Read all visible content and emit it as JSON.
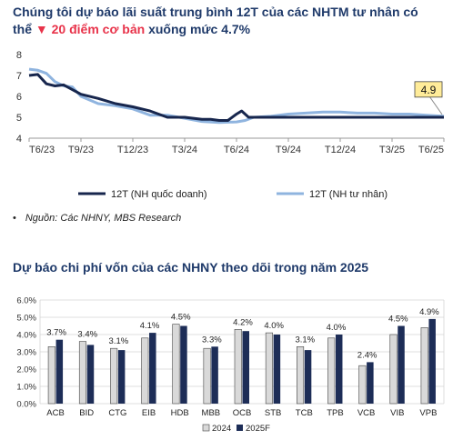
{
  "header": {
    "title_part1": "Chúng tôi dự báo lãi suất trung bình 12T của các NHTM tư nhân có thể",
    "title_highlight": "▼ 20 điểm cơ bản",
    "title_part2": "xuống mức 4.7%"
  },
  "source_note": "Nguồn: Các NHNY, MBS Research",
  "colors": {
    "state": "#17264d",
    "private": "#8fb4df",
    "bar2024": "#d9d9d9",
    "bar2025": "#1d2d57",
    "highlight": "#e8334a",
    "callout": "#ffec99"
  },
  "chart_data": [
    {
      "type": "line",
      "title": "",
      "xlabel": "",
      "ylabel": "",
      "x_ticks": [
        "T6/23",
        "T9/23",
        "T12/23",
        "T3/24",
        "T6/24",
        "T9/24",
        "T12/24",
        "T3/25",
        "T6/25"
      ],
      "x_range": [
        0,
        24
      ],
      "ylim": [
        4,
        8
      ],
      "y_ticks": [
        4,
        5,
        6,
        7,
        8
      ],
      "legend_position": "bottom",
      "callout": "4.9",
      "series": [
        {
          "name": "12T (NH quốc doanh)",
          "points": [
            [
              0,
              7.0
            ],
            [
              0.5,
              7.05
            ],
            [
              1,
              6.6
            ],
            [
              1.5,
              6.5
            ],
            [
              2,
              6.55
            ],
            [
              3,
              6.1
            ],
            [
              4,
              5.9
            ],
            [
              5,
              5.65
            ],
            [
              6,
              5.5
            ],
            [
              7,
              5.3
            ],
            [
              8,
              5.0
            ],
            [
              9,
              5.0
            ],
            [
              10,
              4.9
            ],
            [
              10.5,
              4.9
            ],
            [
              11,
              4.85
            ],
            [
              11.5,
              4.85
            ],
            [
              12,
              5.15
            ],
            [
              12.3,
              5.3
            ],
            [
              12.7,
              5.0
            ],
            [
              13,
              5.0
            ],
            [
              14,
              5.0
            ],
            [
              16,
              5.0
            ],
            [
              18,
              5.0
            ],
            [
              20,
              5.0
            ],
            [
              22,
              5.0
            ],
            [
              24,
              5.0
            ]
          ]
        },
        {
          "name": "12T (NH tư nhân)",
          "points": [
            [
              0,
              7.3
            ],
            [
              0.5,
              7.25
            ],
            [
              1,
              7.1
            ],
            [
              1.5,
              6.7
            ],
            [
              2,
              6.5
            ],
            [
              2.5,
              6.45
            ],
            [
              3,
              6.0
            ],
            [
              4,
              5.65
            ],
            [
              5,
              5.55
            ],
            [
              6,
              5.4
            ],
            [
              7,
              5.1
            ],
            [
              8,
              5.1
            ],
            [
              9,
              4.95
            ],
            [
              10,
              4.8
            ],
            [
              11,
              4.75
            ],
            [
              12,
              4.78
            ],
            [
              12.5,
              4.85
            ],
            [
              13,
              5.0
            ],
            [
              14,
              5.05
            ],
            [
              15,
              5.15
            ],
            [
              16,
              5.2
            ],
            [
              17,
              5.25
            ],
            [
              18,
              5.25
            ],
            [
              19,
              5.2
            ],
            [
              20,
              5.2
            ],
            [
              21,
              5.15
            ],
            [
              22,
              5.15
            ],
            [
              23,
              5.1
            ],
            [
              24,
              5.05
            ]
          ]
        }
      ]
    },
    {
      "type": "bar",
      "title": "Dự báo chi phí vốn của các NHNY theo dõi trong năm 2025",
      "xlabel": "",
      "ylabel": "",
      "categories": [
        "ACB",
        "BID",
        "CTG",
        "EIB",
        "HDB",
        "MBB",
        "OCB",
        "STB",
        "TCB",
        "TPB",
        "VCB",
        "VIB",
        "VPB"
      ],
      "ylim": [
        0,
        6
      ],
      "y_ticks": [
        "0.0%",
        "1.0%",
        "2.0%",
        "3.0%",
        "4.0%",
        "5.0%",
        "6.0%"
      ],
      "legend_position": "bottom",
      "series": [
        {
          "name": "2024",
          "values": [
            3.3,
            3.6,
            3.2,
            3.8,
            4.6,
            3.2,
            4.3,
            4.1,
            3.3,
            3.8,
            2.2,
            4.0,
            4.4
          ]
        },
        {
          "name": "2025F",
          "values": [
            3.7,
            3.4,
            3.1,
            4.1,
            4.5,
            3.3,
            4.2,
            4.0,
            3.1,
            4.0,
            2.4,
            4.5,
            4.9
          ]
        }
      ],
      "data_labels": [
        "3.7%",
        "3.4%",
        "3.1%",
        "4.1%",
        "4.5%",
        "3.3%",
        "4.2%",
        "4.0%",
        "3.1%",
        "4.0%",
        "2.4%",
        "4.5%",
        "4.9%"
      ]
    }
  ]
}
